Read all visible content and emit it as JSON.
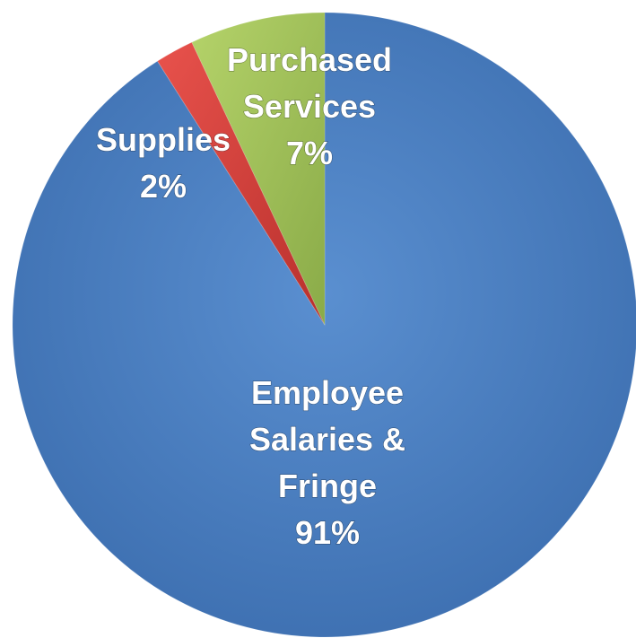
{
  "chart_data": {
    "type": "pie",
    "slices": [
      {
        "label_lines": [
          "Employee",
          "Salaries &",
          "Fringe"
        ],
        "value": 91,
        "value_label": "91%",
        "color": "#4a7ebb"
      },
      {
        "label_lines": [
          "Supplies"
        ],
        "value": 2,
        "value_label": "2%",
        "color": "#d9443f"
      },
      {
        "label_lines": [
          "Purchased",
          "Services"
        ],
        "value": 7,
        "value_label": "7%",
        "color": "#9bbb59"
      }
    ],
    "start_angle_deg": 0,
    "direction": "clockwise",
    "legend": "none"
  }
}
